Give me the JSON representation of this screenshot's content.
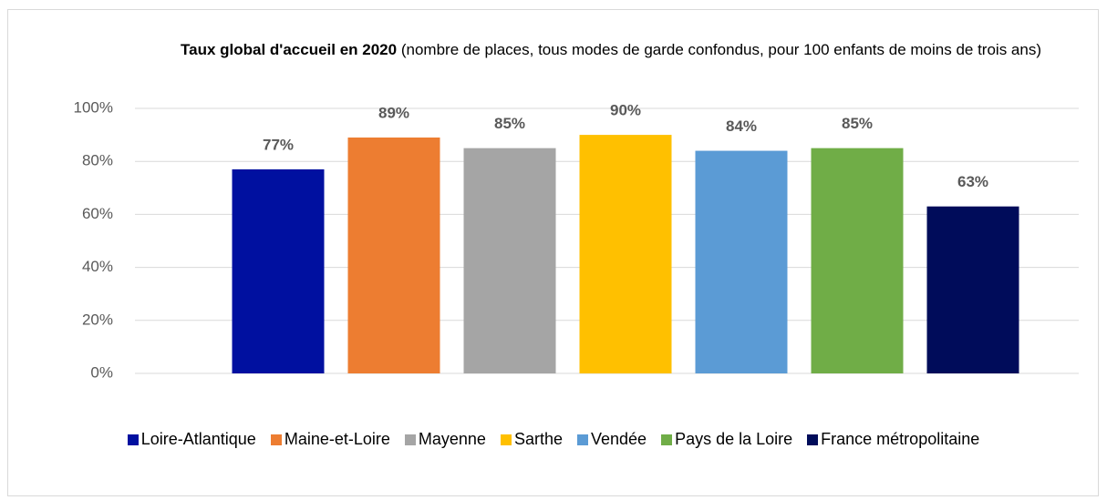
{
  "chart_data": {
    "type": "bar",
    "title": "Taux global d'accueil en 2020",
    "subtitle": "(nombre de places, tous modes de garde confondus, pour 100 enfants de moins de trois ans)",
    "categories": [
      null
    ],
    "series": [
      {
        "name": "Loire-Atlantique",
        "color": "#0010a0",
        "values": [
          77
        ],
        "value_labels": [
          "77%"
        ]
      },
      {
        "name": "Maine-et-Loire",
        "color": "#ed7d31",
        "values": [
          89
        ],
        "value_labels": [
          "89%"
        ]
      },
      {
        "name": "Mayenne",
        "color": "#a5a5a5",
        "values": [
          85
        ],
        "value_labels": [
          "85%"
        ]
      },
      {
        "name": "Sarthe",
        "color": "#ffc000",
        "values": [
          90
        ],
        "value_labels": [
          "90%"
        ]
      },
      {
        "name": "Vendée",
        "color": "#5b9bd5",
        "values": [
          84
        ],
        "value_labels": [
          "84%"
        ]
      },
      {
        "name": "Pays de la Loire",
        "color": "#70ad47",
        "values": [
          85
        ],
        "value_labels": [
          "85%"
        ]
      },
      {
        "name": "France métropolitaine",
        "color": "#000c5a",
        "values": [
          63
        ],
        "value_labels": [
          "63%"
        ]
      }
    ],
    "ylim": [
      0,
      100
    ],
    "yticks": [
      {
        "value": 0,
        "label": "0%"
      },
      {
        "value": 20,
        "label": "20%"
      },
      {
        "value": 40,
        "label": "40%"
      },
      {
        "value": 60,
        "label": "60%"
      },
      {
        "value": 80,
        "label": "80%"
      },
      {
        "value": 100,
        "label": "100%"
      }
    ],
    "grid": true,
    "legend": "bottom"
  }
}
